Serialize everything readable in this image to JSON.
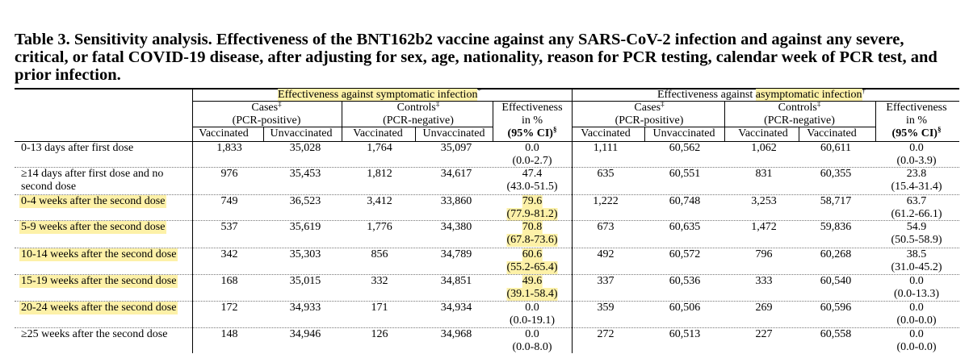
{
  "title": "Table 3. Sensitivity analysis. Effectiveness of the BNT162b2 vaccine against any SARS-CoV-2 infection and against any severe, critical, or fatal COVID-19 disease, after adjusting for sex, age, nationality, reason for PCR testing, calendar week of PCR test, and prior infection.",
  "headers": {
    "group_symptomatic": "Effectiveness against symptomatic infection",
    "group_symptomatic_mark": "*",
    "group_asymptomatic_prefix": "Effectiveness against ",
    "group_asymptomatic": "asymptomatic infection",
    "group_asymptomatic_mark": "†",
    "cases": "Cases",
    "cases_mark": "‡",
    "cases_sub": "(PCR-positive)",
    "controls": "Controls",
    "controls_mark": "‡",
    "controls_sub": "(PCR-negative)",
    "eff_line1": "Effectiveness",
    "eff_line2": "in %",
    "eff_line3": "(95% CI)",
    "eff_mark": "§",
    "vaccinated": "Vaccinated",
    "unvaccinated": "Unvaccinated",
    "controls_col2_asym": "Vaccinated"
  },
  "rows": [
    {
      "label": "0-13 days after first dose",
      "hl": false,
      "s": [
        "1,833",
        "35,028",
        "1,764",
        "35,097"
      ],
      "se": "0.0",
      "sci": "(0.0-2.7)",
      "shl": false,
      "a": [
        "1,111",
        "60,562",
        "1,062",
        "60,611"
      ],
      "ae": "0.0",
      "aci": "(0.0-3.9)"
    },
    {
      "label": "≥14 days after first dose and no",
      "label2": "second dose",
      "hl": false,
      "s": [
        "976",
        "35,453",
        "1,812",
        "34,617"
      ],
      "se": "47.4",
      "sci": "(43.0-51.5)",
      "shl": false,
      "a": [
        "635",
        "60,551",
        "831",
        "60,355"
      ],
      "ae": "23.8",
      "aci": "(15.4-31.4)"
    },
    {
      "label": "0-4 weeks after the second dose",
      "hl": true,
      "s": [
        "749",
        "36,523",
        "3,412",
        "33,860"
      ],
      "se": "79.6",
      "sci": "(77.9-81.2)",
      "shl": true,
      "a": [
        "1,222",
        "60,748",
        "3,253",
        "58,717"
      ],
      "ae": "63.7",
      "aci": "(61.2-66.1)"
    },
    {
      "label": "5-9 weeks after the second dose",
      "hl": true,
      "s": [
        "537",
        "35,619",
        "1,776",
        "34,380"
      ],
      "se": "70.8",
      "sci": "(67.8-73.6)",
      "shl": true,
      "a": [
        "673",
        "60,635",
        "1,472",
        "59,836"
      ],
      "ae": "54.9",
      "aci": "(50.5-58.9)"
    },
    {
      "label": "10-14 weeks after the second dose",
      "hl": true,
      "s": [
        "342",
        "35,303",
        "856",
        "34,789"
      ],
      "se": "60.6",
      "sci": "(55.2-65.4)",
      "shl": true,
      "a": [
        "492",
        "60,572",
        "796",
        "60,268"
      ],
      "ae": "38.5",
      "aci": "(31.0-45.2)"
    },
    {
      "label": "15-19 weeks after the second dose",
      "hl": true,
      "s": [
        "168",
        "35,015",
        "332",
        "34,851"
      ],
      "se": "49.6",
      "sci": "(39.1-58.4)",
      "shl": true,
      "a": [
        "337",
        "60,536",
        "333",
        "60,540"
      ],
      "ae": "0.0",
      "aci": "(0.0-13.3)"
    },
    {
      "label": "20-24 weeks after the second dose",
      "hl": true,
      "s": [
        "172",
        "34,933",
        "171",
        "34,934"
      ],
      "se": "0.0",
      "sci": "(0.0-19.1)",
      "shl": false,
      "a": [
        "359",
        "60,506",
        "269",
        "60,596"
      ],
      "ae": "0.0",
      "aci": "(0.0-0.0)"
    },
    {
      "label": "≥25 weeks after the second dose",
      "hl": false,
      "s": [
        "148",
        "34,946",
        "126",
        "34,968"
      ],
      "se": "0.0",
      "sci": "(0.0-8.0)",
      "shl": false,
      "a": [
        "272",
        "60,513",
        "227",
        "60,558"
      ],
      "ae": "0.0",
      "aci": "(0.0-0.0)"
    }
  ]
}
